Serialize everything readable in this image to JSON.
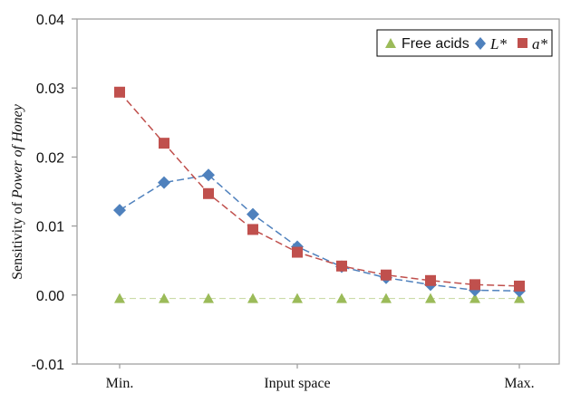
{
  "chart_data": {
    "type": "line",
    "ylabel_prefix": "Sensitivity of ",
    "ylabel_italic": "Power of Honey",
    "xlabel": "Input space",
    "x_ticks": [
      "Min.",
      "Input space",
      "Max."
    ],
    "ylim": [
      -0.01,
      0.04
    ],
    "y_ticks": [
      "0.04",
      "0.03",
      "0.02",
      "0.01",
      "0.00",
      "-0.01"
    ],
    "y_tick_values": [
      0.04,
      0.03,
      0.02,
      0.01,
      0.0,
      -0.01
    ],
    "x_points": [
      1,
      2,
      3,
      4,
      5,
      6,
      7,
      8,
      9,
      10
    ],
    "legend_position": "top-right",
    "series": [
      {
        "name": "Free acids",
        "color": "#9bbb59",
        "marker": "triangle",
        "values": [
          -0.0005,
          -0.0005,
          -0.0005,
          -0.0005,
          -0.0005,
          -0.0005,
          -0.0005,
          -0.0005,
          -0.0005,
          -0.0005
        ]
      },
      {
        "name": "L*",
        "color": "#4f81bd",
        "marker": "diamond",
        "values": [
          0.0123,
          0.0163,
          0.0174,
          0.0117,
          0.007,
          0.0041,
          0.0025,
          0.0015,
          0.0007,
          0.0006
        ]
      },
      {
        "name": "a*",
        "color": "#c0504d",
        "marker": "square",
        "values": [
          0.0294,
          0.022,
          0.0147,
          0.0095,
          0.0062,
          0.0042,
          0.0029,
          0.0021,
          0.0015,
          0.0013
        ]
      }
    ]
  }
}
